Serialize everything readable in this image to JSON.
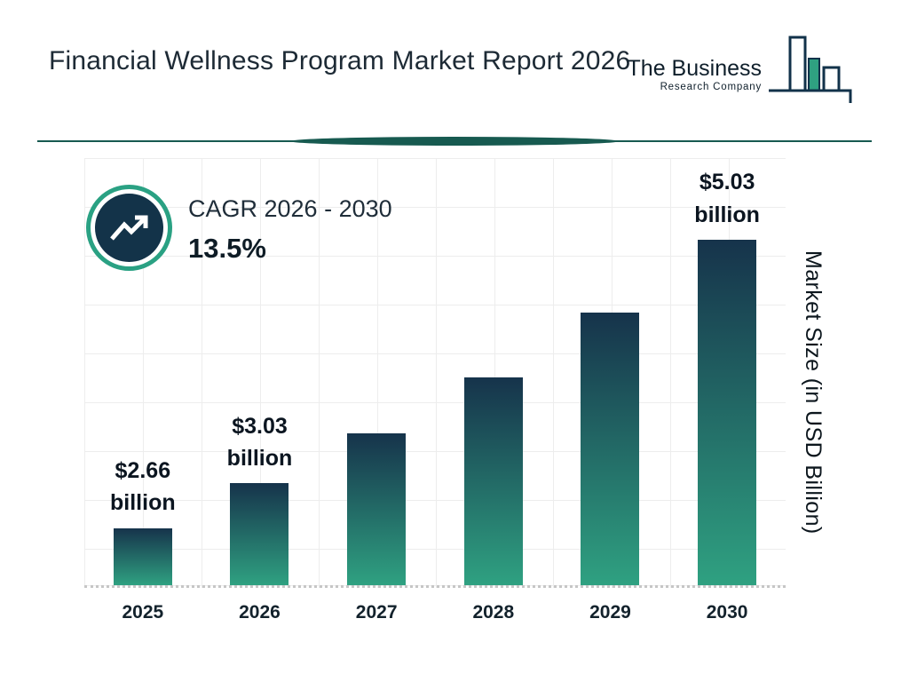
{
  "header": {
    "title": "Financial Wellness Program Market Report 2026",
    "logo": {
      "line1": "The Business",
      "line2": "Research Company"
    }
  },
  "cagr": {
    "label": "CAGR 2026 - 2030",
    "value": "13.5%"
  },
  "y_axis_label": "Market Size (in USD Billion)",
  "chart_data": {
    "type": "bar",
    "title": "Financial Wellness Program Market Report 2026",
    "categories": [
      "2025",
      "2026",
      "2027",
      "2028",
      "2029",
      "2030"
    ],
    "values": [
      2.66,
      3.03,
      3.44,
      3.9,
      4.43,
      5.03
    ],
    "value_labels": [
      [
        "$2.66",
        "billion"
      ],
      [
        "$3.03",
        "billion"
      ],
      null,
      null,
      null,
      [
        "$5.03",
        "billion"
      ]
    ],
    "xlabel": "",
    "ylabel": "Market Size (in USD Billion)",
    "ylim": [
      2.19,
      5.7
    ],
    "grid": true,
    "legend": false,
    "colors": {
      "bar_top": "#16334b",
      "bar_bottom": "#2fa181",
      "accent_teal": "#2aa183",
      "badge_navy": "#133349",
      "divider": "#175a50"
    }
  }
}
